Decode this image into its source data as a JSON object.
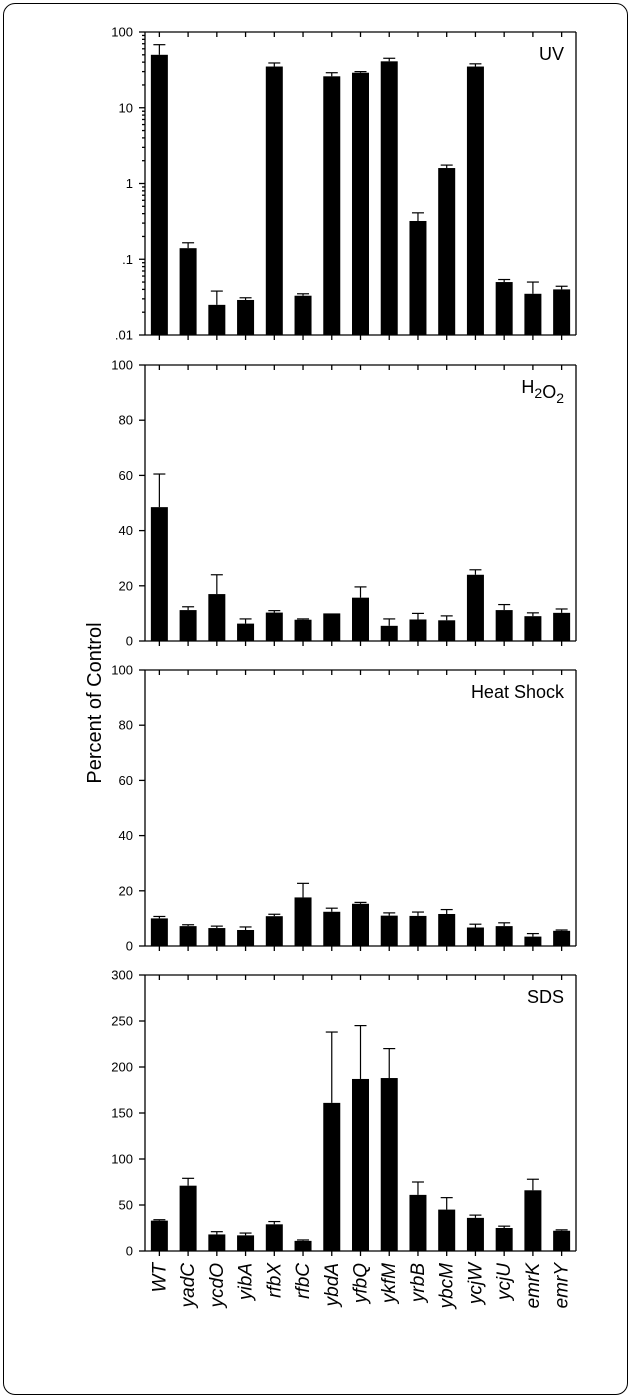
{
  "ylabel": "Percent of Control",
  "categories": [
    "WT",
    "yadC",
    "ycdO",
    "yibA",
    "rfbX",
    "rfbC",
    "ybdA",
    "yfbQ",
    "ykfM",
    "yrbB",
    "ybcM",
    "ycjW",
    "ycjU",
    "emrK",
    "emrY"
  ],
  "chart_data": [
    {
      "type": "bar",
      "title": "UV",
      "yscale": "log",
      "ylim": [
        0.01,
        100
      ],
      "yticks": [
        "100",
        "10",
        "1",
        ".1",
        ".01"
      ],
      "values": [
        50,
        0.14,
        0.025,
        0.029,
        35,
        0.033,
        26,
        29,
        41,
        0.32,
        1.6,
        35,
        0.05,
        0.035,
        0.04
      ],
      "errors": [
        68,
        0.165,
        0.038,
        0.031,
        39,
        0.035,
        29,
        30,
        45,
        0.41,
        1.75,
        38,
        0.054,
        0.05,
        0.044
      ]
    },
    {
      "type": "bar",
      "title": "H₂O₂",
      "yscale": "linear",
      "ylim": [
        0,
        100
      ],
      "yticks": [
        "100",
        "80",
        "60",
        "40",
        "20",
        "0"
      ],
      "values": [
        48.5,
        11.2,
        17,
        6.3,
        10.3,
        7.7,
        10,
        15.7,
        5.5,
        7.8,
        7.5,
        24,
        11.2,
        9,
        10.2
      ],
      "errors": [
        60.5,
        12.4,
        24,
        8,
        11,
        8,
        10.1,
        19.6,
        8,
        10,
        9.1,
        25.8,
        13.2,
        10.2,
        11.6
      ]
    },
    {
      "type": "bar",
      "title": "Heat Shock",
      "yscale": "linear",
      "ylim": [
        0,
        100
      ],
      "yticks": [
        "100",
        "80",
        "60",
        "40",
        "20",
        "0"
      ],
      "values": [
        10,
        7.2,
        6.5,
        5.8,
        10.8,
        17.6,
        12.4,
        15.3,
        11,
        10.9,
        11.6,
        6.7,
        7.2,
        3.4,
        5.5
      ],
      "errors": [
        10.7,
        7.7,
        7.2,
        6.9,
        11.5,
        22.7,
        13.7,
        15.8,
        12,
        12.3,
        13.2,
        7.9,
        8.4,
        4.5,
        5.8
      ]
    },
    {
      "type": "bar",
      "title": "SDS",
      "yscale": "linear",
      "ylim": [
        0,
        300
      ],
      "yticks": [
        "300",
        "250",
        "200",
        "150",
        "100",
        "50",
        "0"
      ],
      "values": [
        33,
        71,
        18,
        17,
        29,
        11,
        161,
        187,
        188,
        61,
        45,
        36,
        25,
        66,
        22
      ],
      "errors": [
        34,
        79,
        21,
        19.5,
        32,
        12,
        238,
        245,
        220,
        75,
        58,
        39,
        27,
        78,
        23
      ]
    }
  ]
}
